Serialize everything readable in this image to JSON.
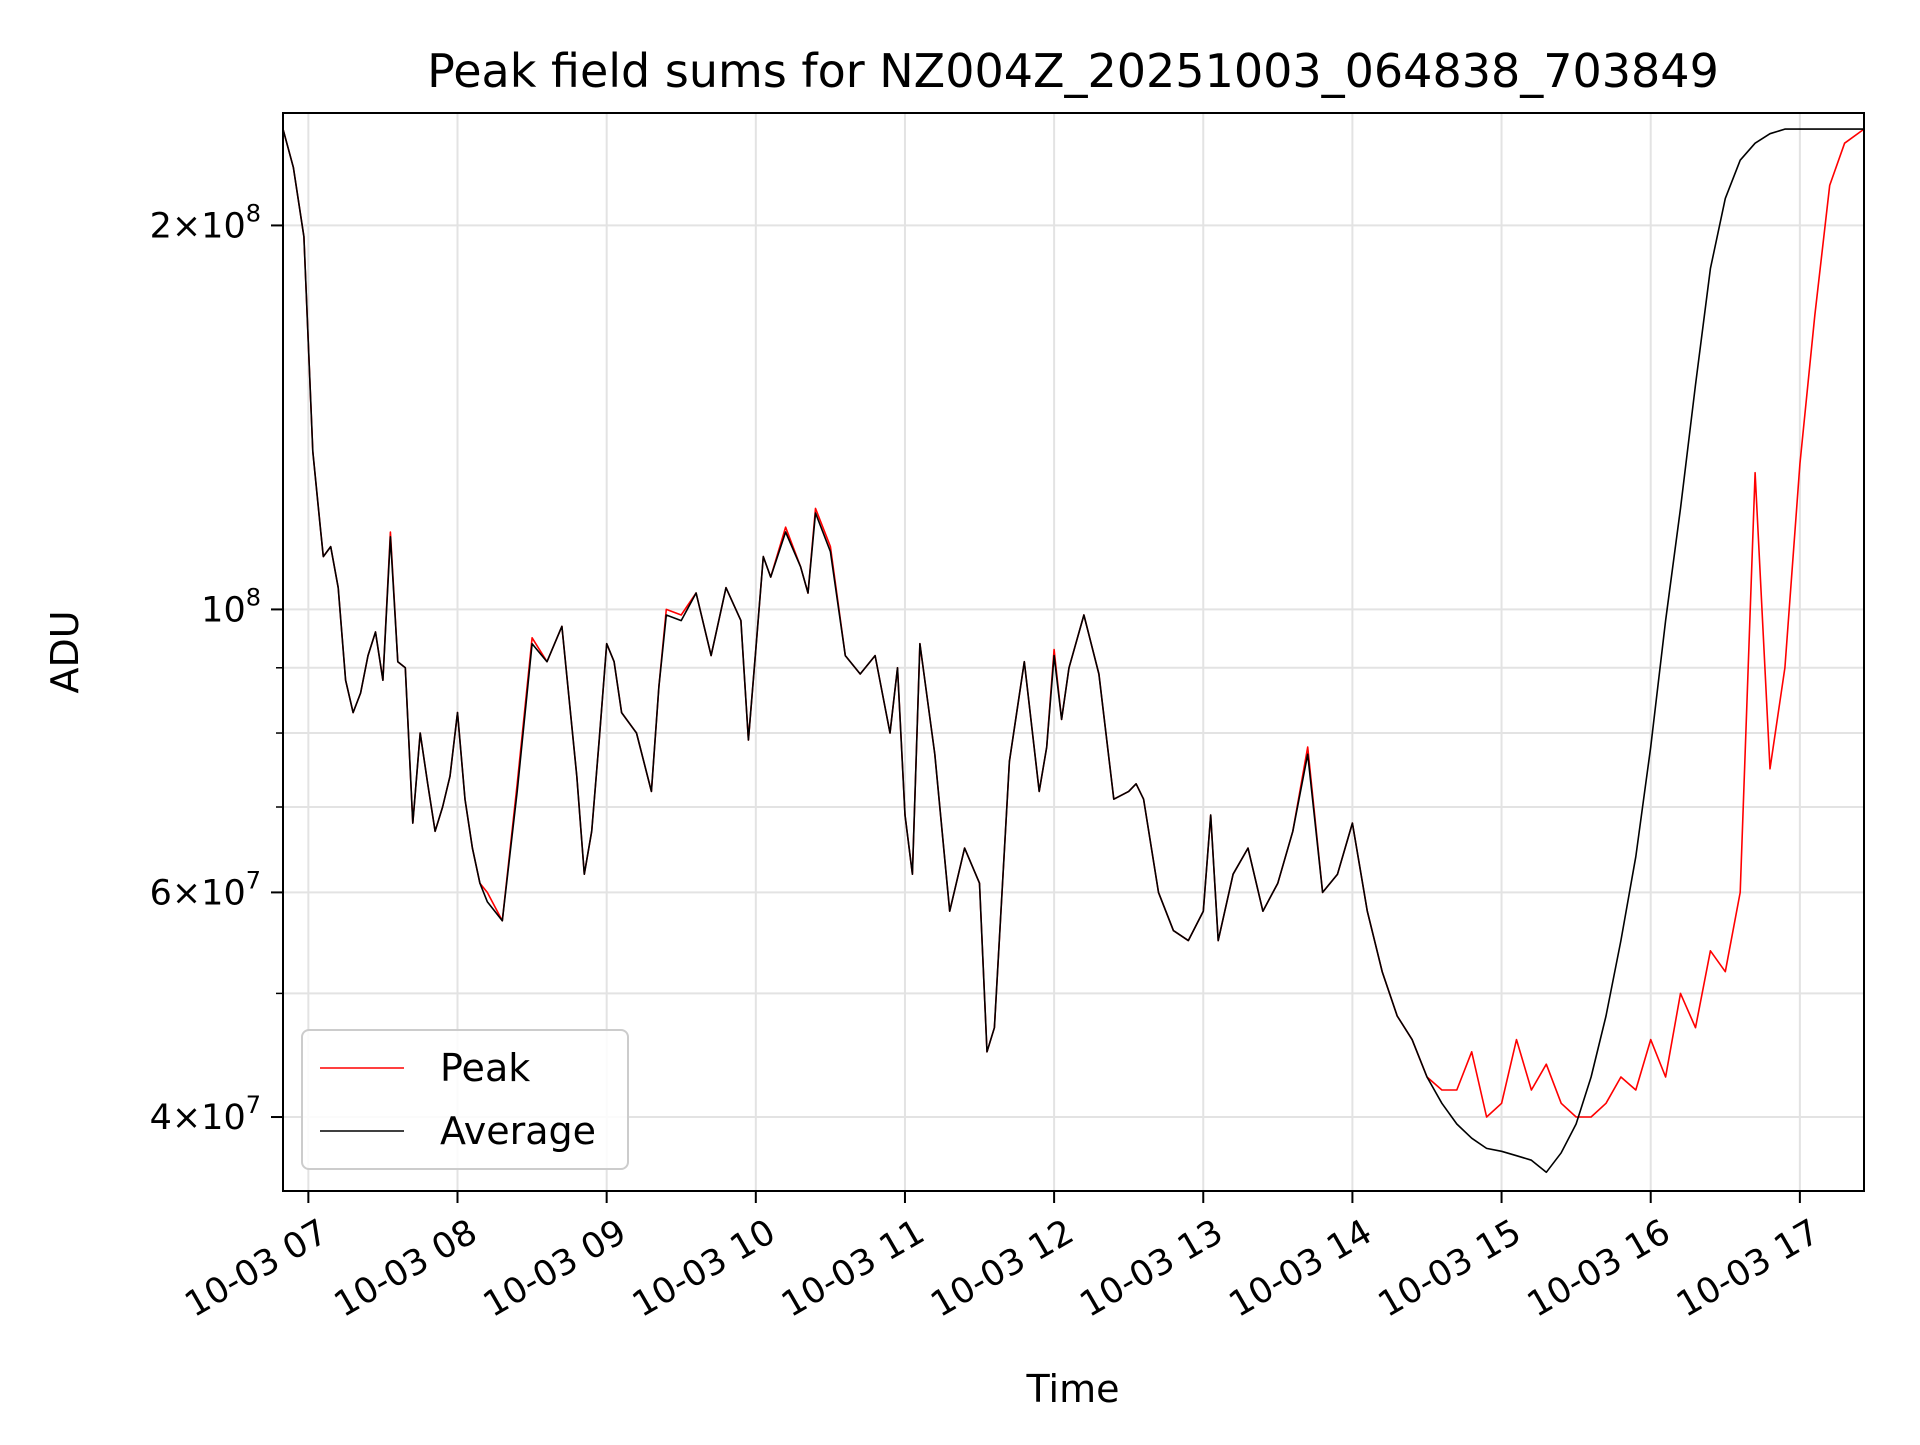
{
  "chart_data": {
    "type": "line",
    "title": "Peak field sums for NZ004Z_20251003_064838_703849",
    "xlabel": "Time",
    "ylabel": "ADU",
    "yscale": "log",
    "ylim": [
      35000000,
      245000000
    ],
    "xlim_hours": [
      6.83,
      17.43
    ],
    "grid": true,
    "legend_location": "lower-left",
    "x_ticks": [
      {
        "hour": 7,
        "label": "10-03 07"
      },
      {
        "hour": 8,
        "label": "10-03 08"
      },
      {
        "hour": 9,
        "label": "10-03 09"
      },
      {
        "hour": 10,
        "label": "10-03 10"
      },
      {
        "hour": 11,
        "label": "10-03 11"
      },
      {
        "hour": 12,
        "label": "10-03 12"
      },
      {
        "hour": 13,
        "label": "10-03 13"
      },
      {
        "hour": 14,
        "label": "10-03 14"
      },
      {
        "hour": 15,
        "label": "10-03 15"
      },
      {
        "hour": 16,
        "label": "10-03 16"
      },
      {
        "hour": 17,
        "label": "10-03 17"
      }
    ],
    "y_major_ticks": [
      {
        "value": 40000000,
        "base": "4",
        "exp": "7"
      },
      {
        "value": 60000000,
        "base": "6",
        "exp": "7"
      },
      {
        "value": 100000000,
        "base": "",
        "exp": "8"
      },
      {
        "value": 200000000,
        "base": "2",
        "exp": "8"
      }
    ],
    "y_minor_ticks": [
      50000000,
      70000000,
      80000000,
      90000000
    ],
    "series": [
      {
        "name": "Peak",
        "color": "#ff0000",
        "x_hours": [
          6.83,
          6.9,
          6.97,
          7.03,
          7.08,
          7.1,
          7.15,
          7.2,
          7.25,
          7.3,
          7.35,
          7.4,
          7.45,
          7.5,
          7.55,
          7.6,
          7.65,
          7.7,
          7.75,
          7.8,
          7.85,
          7.9,
          7.95,
          8.0,
          8.05,
          8.1,
          8.15,
          8.2,
          8.3,
          8.4,
          8.5,
          8.6,
          8.7,
          8.8,
          8.85,
          8.9,
          8.95,
          9.0,
          9.05,
          9.1,
          9.2,
          9.3,
          9.35,
          9.4,
          9.5,
          9.6,
          9.7,
          9.8,
          9.9,
          9.95,
          10.0,
          10.05,
          10.1,
          10.2,
          10.3,
          10.35,
          10.4,
          10.5,
          10.6,
          10.7,
          10.8,
          10.9,
          10.95,
          11.0,
          11.05,
          11.1,
          11.2,
          11.3,
          11.4,
          11.5,
          11.55,
          11.6,
          11.7,
          11.8,
          11.9,
          11.95,
          12.0,
          12.05,
          12.1,
          12.2,
          12.3,
          12.4,
          12.5,
          12.55,
          12.6,
          12.7,
          12.8,
          12.9,
          13.0,
          13.05,
          13.1,
          13.2,
          13.3,
          13.4,
          13.5,
          13.6,
          13.7,
          13.8,
          13.9,
          14.0,
          14.1,
          14.2,
          14.3,
          14.4,
          14.5,
          14.6,
          14.7,
          14.8,
          14.9,
          15.0,
          15.1,
          15.2,
          15.3,
          15.4,
          15.5,
          15.6,
          15.7,
          15.8,
          15.9,
          16.0,
          16.1,
          16.2,
          16.3,
          16.4,
          16.5,
          16.6,
          16.7,
          16.8,
          16.9,
          17.0,
          17.1,
          17.2,
          17.3,
          17.43
        ],
        "values": [
          238000000,
          222000000,
          196000000,
          133000000,
          116000000,
          110000000,
          112000000,
          104000000,
          88000000,
          83000000,
          86000000,
          92000000,
          96000000,
          88000000,
          115000000,
          91000000,
          90000000,
          68000000,
          80000000,
          73000000,
          67000000,
          70000000,
          74000000,
          83000000,
          71000000,
          65000000,
          61000000,
          60000000,
          57000000,
          73000000,
          95000000,
          91000000,
          97000000,
          74000000,
          62000000,
          67000000,
          79000000,
          94000000,
          91000000,
          83000000,
          80000000,
          72000000,
          87000000,
          100000000,
          99000000,
          103000000,
          92000000,
          104000000,
          98000000,
          79000000,
          93000000,
          110000000,
          106000000,
          116000000,
          108000000,
          103000000,
          120000000,
          112000000,
          92000000,
          89000000,
          92000000,
          80000000,
          90000000,
          69000000,
          62000000,
          94000000,
          77000000,
          58000000,
          65000000,
          61000000,
          45000000,
          47000000,
          76000000,
          91000000,
          72000000,
          78000000,
          93000000,
          82000000,
          90000000,
          99000000,
          89000000,
          71000000,
          72000000,
          73000000,
          71000000,
          60000000,
          56000000,
          55000000,
          58000000,
          69000000,
          55000000,
          62000000,
          65000000,
          58000000,
          61000000,
          67000000,
          78000000,
          60000000,
          62000000,
          68000000,
          58000000,
          52000000,
          48000000,
          46000000,
          43000000,
          42000000,
          42000000,
          45000000,
          40000000,
          41000000,
          46000000,
          42000000,
          44000000,
          41000000,
          40000000,
          40000000,
          41000000,
          43000000,
          42000000,
          46000000,
          43000000,
          50000000,
          47000000,
          54000000,
          52000000,
          60000000,
          128000000,
          75000000,
          90000000,
          130000000,
          170000000,
          215000000,
          232000000,
          238000000
        ]
      },
      {
        "name": "Average",
        "color": "#000000",
        "x_hours": [
          6.83,
          6.9,
          6.97,
          7.03,
          7.08,
          7.1,
          7.15,
          7.2,
          7.25,
          7.3,
          7.35,
          7.4,
          7.45,
          7.5,
          7.55,
          7.6,
          7.65,
          7.7,
          7.75,
          7.8,
          7.85,
          7.9,
          7.95,
          8.0,
          8.05,
          8.1,
          8.15,
          8.2,
          8.3,
          8.4,
          8.5,
          8.6,
          8.7,
          8.8,
          8.85,
          8.9,
          8.95,
          9.0,
          9.05,
          9.1,
          9.2,
          9.3,
          9.35,
          9.4,
          9.5,
          9.6,
          9.7,
          9.8,
          9.9,
          9.95,
          10.0,
          10.05,
          10.1,
          10.2,
          10.3,
          10.35,
          10.4,
          10.5,
          10.6,
          10.7,
          10.8,
          10.9,
          10.95,
          11.0,
          11.05,
          11.1,
          11.2,
          11.3,
          11.4,
          11.5,
          11.55,
          11.6,
          11.7,
          11.8,
          11.9,
          11.95,
          12.0,
          12.05,
          12.1,
          12.2,
          12.3,
          12.4,
          12.5,
          12.55,
          12.6,
          12.7,
          12.8,
          12.9,
          13.0,
          13.05,
          13.1,
          13.2,
          13.3,
          13.4,
          13.5,
          13.6,
          13.7,
          13.8,
          13.9,
          14.0,
          14.1,
          14.2,
          14.3,
          14.4,
          14.5,
          14.6,
          14.7,
          14.8,
          14.9,
          15.0,
          15.1,
          15.2,
          15.3,
          15.4,
          15.5,
          15.6,
          15.7,
          15.8,
          15.9,
          16.0,
          16.1,
          16.2,
          16.3,
          16.4,
          16.5,
          16.6,
          16.7,
          16.8,
          16.9,
          17.0,
          17.1,
          17.2,
          17.3,
          17.43
        ],
        "values": [
          238000000,
          222000000,
          196000000,
          133000000,
          116000000,
          110000000,
          112000000,
          104000000,
          88000000,
          83000000,
          86000000,
          92000000,
          96000000,
          88000000,
          114000000,
          91000000,
          90000000,
          68000000,
          80000000,
          73000000,
          67000000,
          70000000,
          74000000,
          83000000,
          71000000,
          65000000,
          61000000,
          59000000,
          57000000,
          72000000,
          94000000,
          91000000,
          97000000,
          74000000,
          62000000,
          67000000,
          79000000,
          94000000,
          91000000,
          83000000,
          80000000,
          72000000,
          87000000,
          99000000,
          98000000,
          103000000,
          92000000,
          104000000,
          98000000,
          79000000,
          93000000,
          110000000,
          106000000,
          115000000,
          108000000,
          103000000,
          119000000,
          111000000,
          92000000,
          89000000,
          92000000,
          80000000,
          90000000,
          69000000,
          62000000,
          94000000,
          77000000,
          58000000,
          65000000,
          61000000,
          45000000,
          47000000,
          76000000,
          91000000,
          72000000,
          78000000,
          92000000,
          82000000,
          90000000,
          99000000,
          89000000,
          71000000,
          72000000,
          73000000,
          71000000,
          60000000,
          56000000,
          55000000,
          58000000,
          69000000,
          55000000,
          62000000,
          65000000,
          58000000,
          61000000,
          67000000,
          77000000,
          60000000,
          62000000,
          68000000,
          58000000,
          52000000,
          48000000,
          46000000,
          43000000,
          41000000,
          39500000,
          38500000,
          37800000,
          37600000,
          37300000,
          37000000,
          36200000,
          37500000,
          39500000,
          43000000,
          48000000,
          55000000,
          64000000,
          78000000,
          98000000,
          120000000,
          150000000,
          185000000,
          210000000,
          225000000,
          232000000,
          236000000,
          238000000,
          238000000,
          238000000,
          238000000,
          238000000,
          238000000
        ]
      }
    ]
  }
}
